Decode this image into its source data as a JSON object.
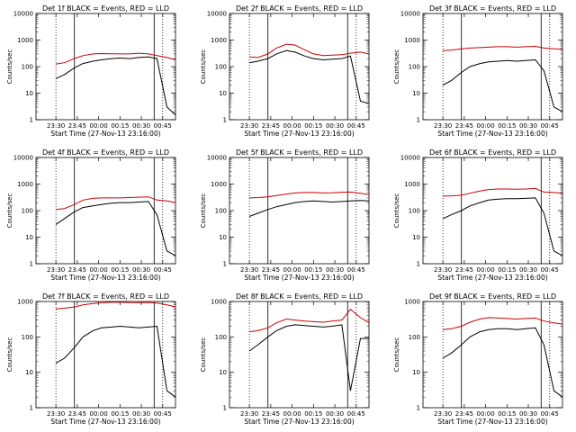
{
  "figure": {
    "colors": {
      "events": "#000000",
      "lld": "#cc0000",
      "axis": "#000000"
    },
    "x_ticks": [
      "23:30",
      "23:45",
      "00:00",
      "00:15",
      "00:30",
      "00:45"
    ],
    "x_label": "Start Time (27-Nov-13 23:16:00)",
    "y_label": "Counts/sec"
  },
  "chart_data": [
    {
      "type": "line",
      "title": "Det 1f BLACK = Events, RED = LLD",
      "y_scale": "log",
      "ylim": [
        1,
        10000
      ],
      "y_ticks": [
        "1",
        "10",
        "100",
        "1000",
        "10000"
      ],
      "x_range_minutes": [
        0,
        98
      ],
      "x": [
        14,
        20,
        27,
        33,
        40,
        46,
        53,
        59,
        66,
        72,
        79,
        85,
        92,
        98
      ],
      "series": [
        {
          "name": "BLACK = Events",
          "values": [
            35,
            50,
            90,
            130,
            160,
            180,
            200,
            210,
            200,
            220,
            230,
            200,
            3,
            1.5
          ]
        },
        {
          "name": "RED = LLD",
          "values": [
            125,
            140,
            200,
            260,
            300,
            310,
            305,
            300,
            300,
            320,
            300,
            260,
            220,
            180
          ]
        }
      ]
    },
    {
      "type": "line",
      "title": "Det 2f BLACK = Events, RED = LLD",
      "y_scale": "log",
      "ylim": [
        1,
        10000
      ],
      "y_ticks": [
        "1",
        "10",
        "100",
        "1000",
        "10000"
      ],
      "x_range_minutes": [
        0,
        98
      ],
      "x": [
        14,
        20,
        27,
        33,
        40,
        46,
        53,
        59,
        66,
        72,
        79,
        85,
        92,
        98
      ],
      "series": [
        {
          "name": "BLACK = Events",
          "values": [
            140,
            160,
            200,
            300,
            400,
            350,
            250,
            200,
            180,
            190,
            200,
            250,
            5,
            4
          ]
        },
        {
          "name": "RED = LLD",
          "values": [
            230,
            220,
            300,
            500,
            700,
            650,
            420,
            300,
            260,
            270,
            280,
            320,
            350,
            300
          ]
        }
      ]
    },
    {
      "type": "line",
      "title": "Det 3f BLACK = Events, RED = LLD",
      "y_scale": "log",
      "ylim": [
        1,
        10000
      ],
      "y_ticks": [
        "1",
        "10",
        "100",
        "1000",
        "10000"
      ],
      "x_range_minutes": [
        0,
        98
      ],
      "x": [
        14,
        20,
        27,
        33,
        40,
        46,
        53,
        59,
        66,
        72,
        79,
        85,
        92,
        98
      ],
      "series": [
        {
          "name": "BLACK = Events",
          "values": [
            20,
            30,
            60,
            100,
            130,
            150,
            160,
            170,
            160,
            170,
            180,
            70,
            3,
            2
          ]
        },
        {
          "name": "RED = LLD",
          "values": [
            400,
            420,
            460,
            500,
            520,
            540,
            560,
            560,
            540,
            560,
            580,
            500,
            470,
            450
          ]
        }
      ]
    },
    {
      "type": "line",
      "title": "Det 4f BLACK = Events, RED = LLD",
      "y_scale": "log",
      "ylim": [
        1,
        10000
      ],
      "y_ticks": [
        "1",
        "10",
        "100",
        "1000",
        "10000"
      ],
      "x_range_minutes": [
        0,
        98
      ],
      "x": [
        14,
        20,
        27,
        33,
        40,
        46,
        53,
        59,
        66,
        72,
        79,
        85,
        92,
        98
      ],
      "series": [
        {
          "name": "BLACK = Events",
          "values": [
            30,
            50,
            90,
            130,
            150,
            170,
            190,
            200,
            200,
            210,
            220,
            70,
            3,
            2
          ]
        },
        {
          "name": "RED = LLD",
          "values": [
            110,
            120,
            170,
            250,
            290,
            300,
            300,
            300,
            310,
            320,
            330,
            250,
            230,
            200
          ]
        }
      ]
    },
    {
      "type": "line",
      "title": "Det 5f BLACK = Events, RED = LLD",
      "y_scale": "log",
      "ylim": [
        1,
        10000
      ],
      "y_ticks": [
        "1",
        "10",
        "100",
        "1000",
        "10000"
      ],
      "x_range_minutes": [
        0,
        98
      ],
      "x": [
        14,
        20,
        27,
        33,
        40,
        46,
        53,
        59,
        66,
        72,
        79,
        85,
        92,
        98
      ],
      "series": [
        {
          "name": "BLACK = Events",
          "values": [
            60,
            80,
            110,
            140,
            170,
            200,
            220,
            230,
            220,
            210,
            220,
            230,
            240,
            230
          ]
        },
        {
          "name": "RED = LLD",
          "values": [
            300,
            310,
            330,
            370,
            420,
            460,
            480,
            480,
            460,
            470,
            490,
            500,
            450,
            400
          ]
        }
      ]
    },
    {
      "type": "line",
      "title": "Det 6f BLACK = Events, RED = LLD",
      "y_scale": "log",
      "ylim": [
        1,
        10000
      ],
      "y_ticks": [
        "1",
        "10",
        "100",
        "1000",
        "10000"
      ],
      "x_range_minutes": [
        0,
        98
      ],
      "x": [
        14,
        20,
        27,
        33,
        40,
        46,
        53,
        59,
        66,
        72,
        79,
        85,
        92,
        98
      ],
      "series": [
        {
          "name": "BLACK = Events",
          "values": [
            50,
            70,
            100,
            150,
            200,
            250,
            270,
            280,
            280,
            290,
            300,
            80,
            3,
            2
          ]
        },
        {
          "name": "RED = LLD",
          "values": [
            350,
            360,
            380,
            450,
            550,
            620,
            650,
            650,
            640,
            650,
            680,
            500,
            480,
            450
          ]
        }
      ]
    },
    {
      "type": "line",
      "title": "Det 7f BLACK = Events, RED = LLD",
      "y_scale": "log",
      "ylim": [
        1,
        1000
      ],
      "y_ticks": [
        "1",
        "10",
        "100",
        "1000"
      ],
      "x_range_minutes": [
        0,
        98
      ],
      "x": [
        14,
        20,
        27,
        33,
        40,
        46,
        53,
        59,
        66,
        72,
        79,
        85,
        92,
        98
      ],
      "series": [
        {
          "name": "BLACK = Events",
          "values": [
            18,
            25,
            50,
            100,
            150,
            180,
            190,
            200,
            190,
            180,
            190,
            200,
            3,
            2
          ]
        },
        {
          "name": "RED = LLD",
          "values": [
            620,
            650,
            700,
            800,
            880,
            920,
            950,
            960,
            930,
            920,
            940,
            900,
            800,
            700
          ]
        }
      ]
    },
    {
      "type": "line",
      "title": "Det 8f BLACK = Events, RED = LLD",
      "y_scale": "log",
      "ylim": [
        1,
        1000
      ],
      "y_ticks": [
        "1",
        "10",
        "100",
        "1000"
      ],
      "x_range_minutes": [
        0,
        98
      ],
      "x": [
        14,
        20,
        27,
        33,
        40,
        46,
        53,
        59,
        66,
        72,
        79,
        85,
        92,
        98
      ],
      "series": [
        {
          "name": "BLACK = Events",
          "values": [
            40,
            60,
            100,
            150,
            200,
            220,
            210,
            200,
            190,
            200,
            220,
            3,
            90,
            90
          ]
        },
        {
          "name": "RED = LLD",
          "values": [
            140,
            150,
            180,
            250,
            320,
            300,
            280,
            270,
            260,
            280,
            300,
            600,
            350,
            250
          ]
        }
      ]
    },
    {
      "type": "line",
      "title": "Det 9f BLACK = Events, RED = LLD",
      "y_scale": "log",
      "ylim": [
        1,
        1000
      ],
      "y_ticks": [
        "1",
        "10",
        "100",
        "1000"
      ],
      "x_range_minutes": [
        0,
        98
      ],
      "x": [
        14,
        20,
        27,
        33,
        40,
        46,
        53,
        59,
        66,
        72,
        79,
        85,
        92,
        98
      ],
      "series": [
        {
          "name": "BLACK = Events",
          "values": [
            25,
            35,
            60,
            100,
            140,
            160,
            170,
            170,
            160,
            170,
            180,
            60,
            3,
            2
          ]
        },
        {
          "name": "RED = LLD",
          "values": [
            160,
            170,
            200,
            260,
            320,
            350,
            340,
            330,
            320,
            330,
            340,
            280,
            250,
            230
          ]
        }
      ]
    }
  ]
}
